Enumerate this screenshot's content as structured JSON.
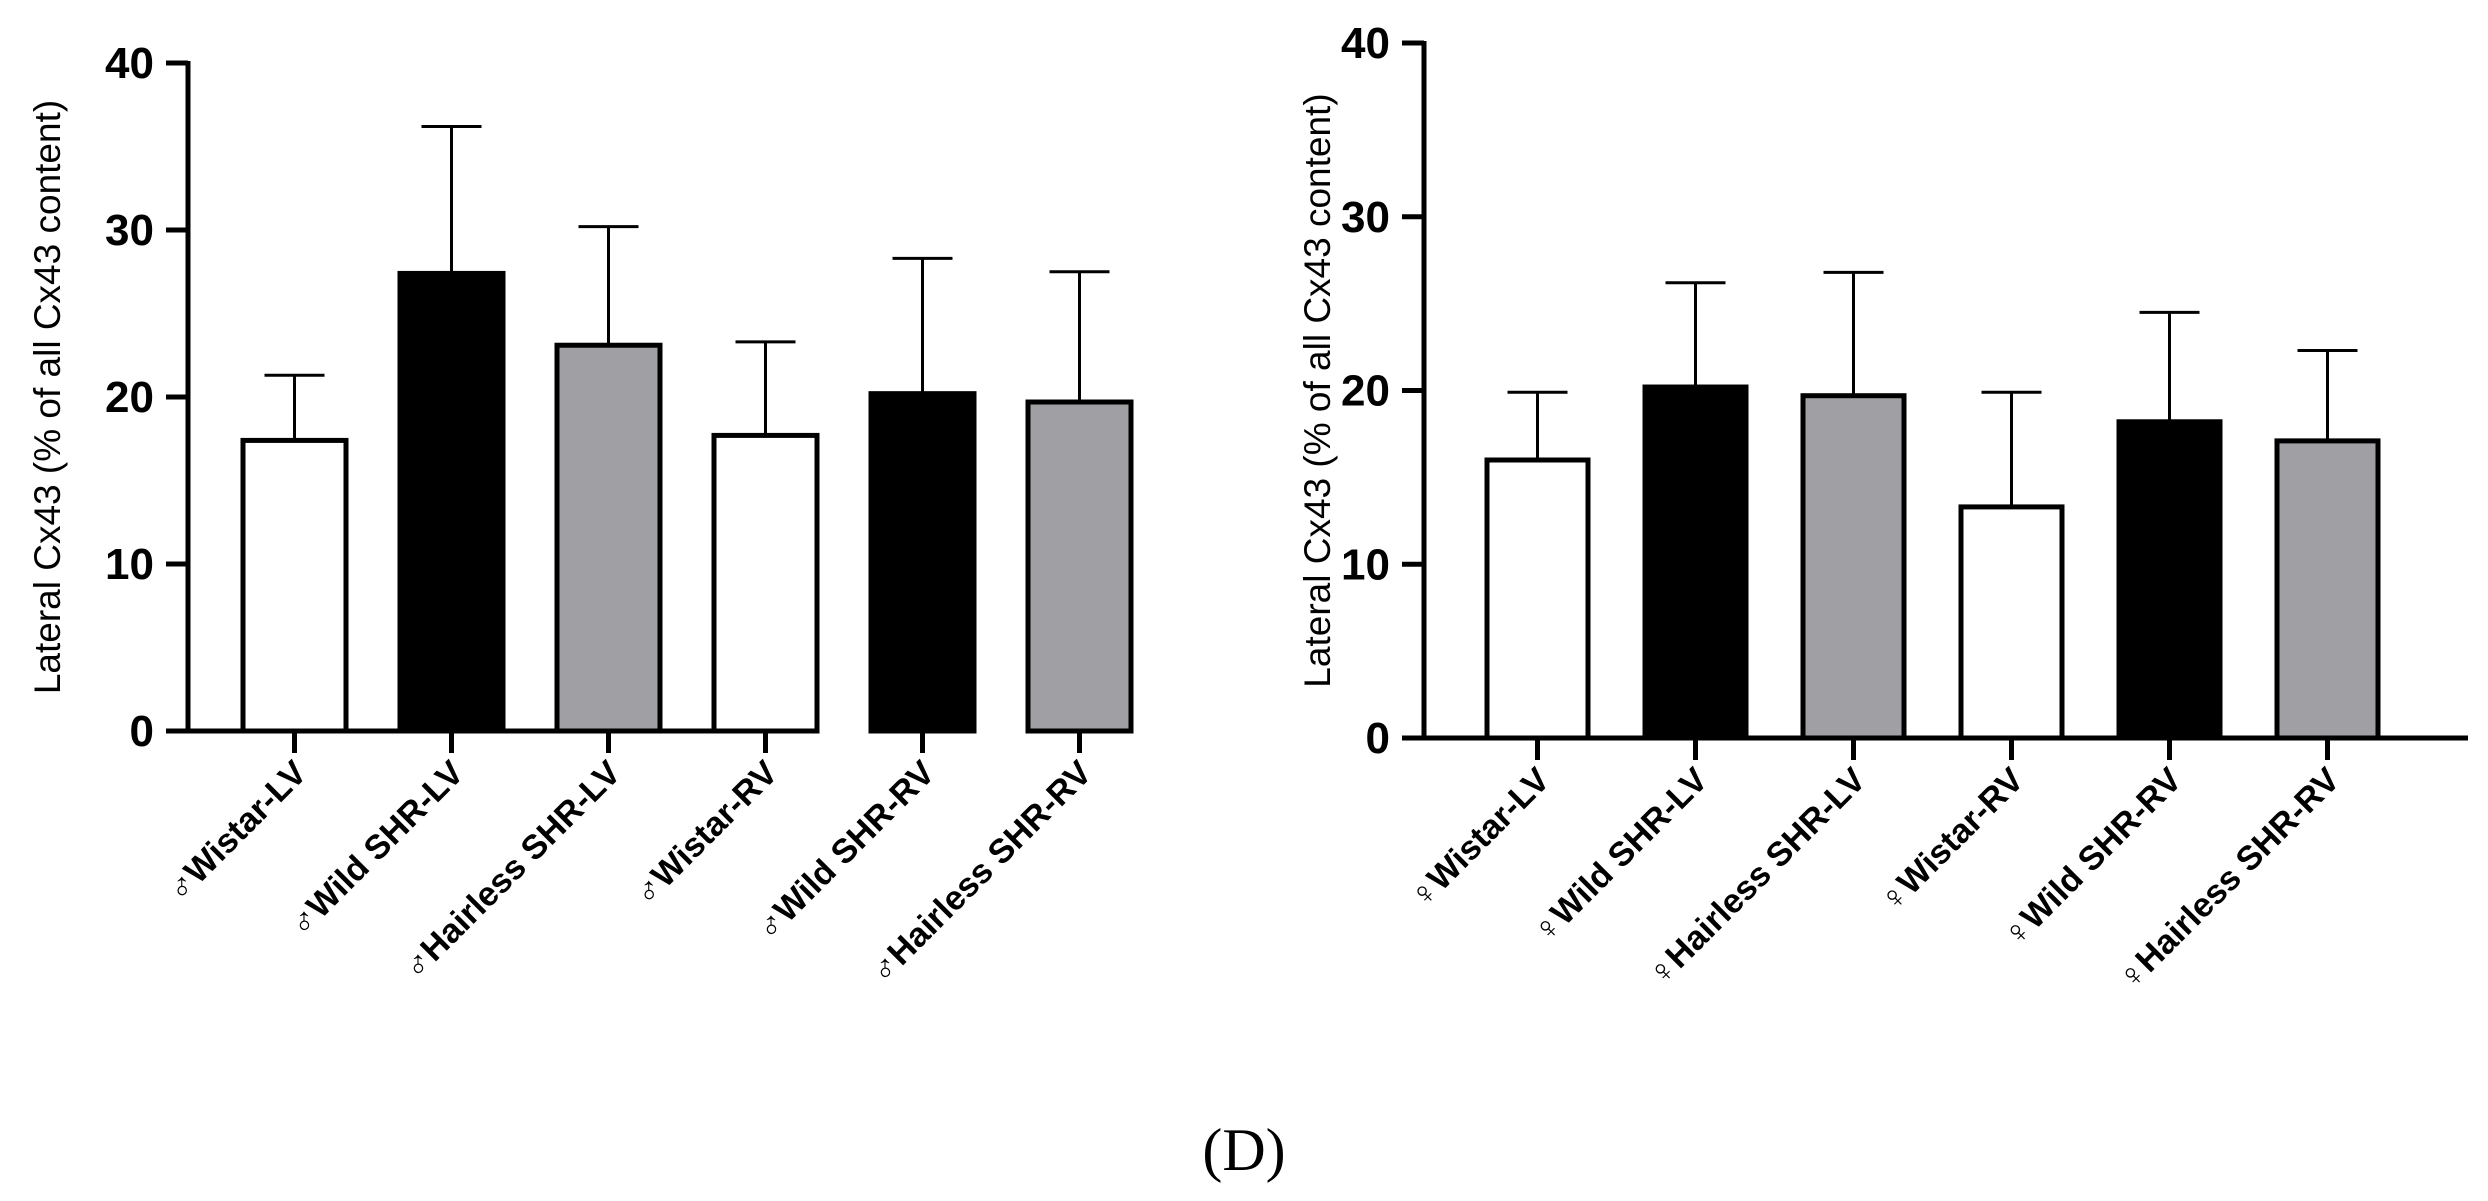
{
  "chart_data": [
    {
      "type": "bar",
      "ylabel": "Lateral Cx43 (% of all Cx43 content)",
      "ylim": [
        0,
        40
      ],
      "yticks": [
        0,
        10,
        20,
        30,
        40
      ],
      "categories": [
        "♂Wistar-LV",
        "♂Wild SHR-LV",
        "♂Hairless SHR-LV",
        "♂Wistar-RV",
        "♂Wild SHR-RV",
        "♂Hairless SHR-RV"
      ],
      "values": [
        17.4,
        27.4,
        23.1,
        17.7,
        20.2,
        19.7
      ],
      "errors": [
        3.9,
        8.8,
        7.1,
        5.6,
        8.1,
        7.8
      ],
      "colors": [
        "#ffffff",
        "#000000",
        "#a09fa3",
        "#ffffff",
        "#000000",
        "#a09fa3"
      ]
    },
    {
      "type": "bar",
      "ylabel": "Lateral Cx43 (% of all Cx43 content)",
      "ylim": [
        0,
        40
      ],
      "yticks": [
        0,
        10,
        20,
        30,
        40
      ],
      "categories": [
        "♀Wistar-LV",
        "♀Wild SHR-LV",
        "♀Hairless SHR-LV",
        "♀Wistar-RV",
        "♀Wild SHR-RV",
        "♀Hairless SHR-RV"
      ],
      "values": [
        16.0,
        20.2,
        19.7,
        13.3,
        18.2,
        17.1
      ],
      "errors": [
        3.9,
        6.0,
        7.1,
        6.6,
        6.3,
        5.2
      ],
      "colors": [
        "#ffffff",
        "#000000",
        "#a09fa3",
        "#ffffff",
        "#000000",
        "#a09fa3"
      ]
    }
  ],
  "panel_label": "(D)"
}
